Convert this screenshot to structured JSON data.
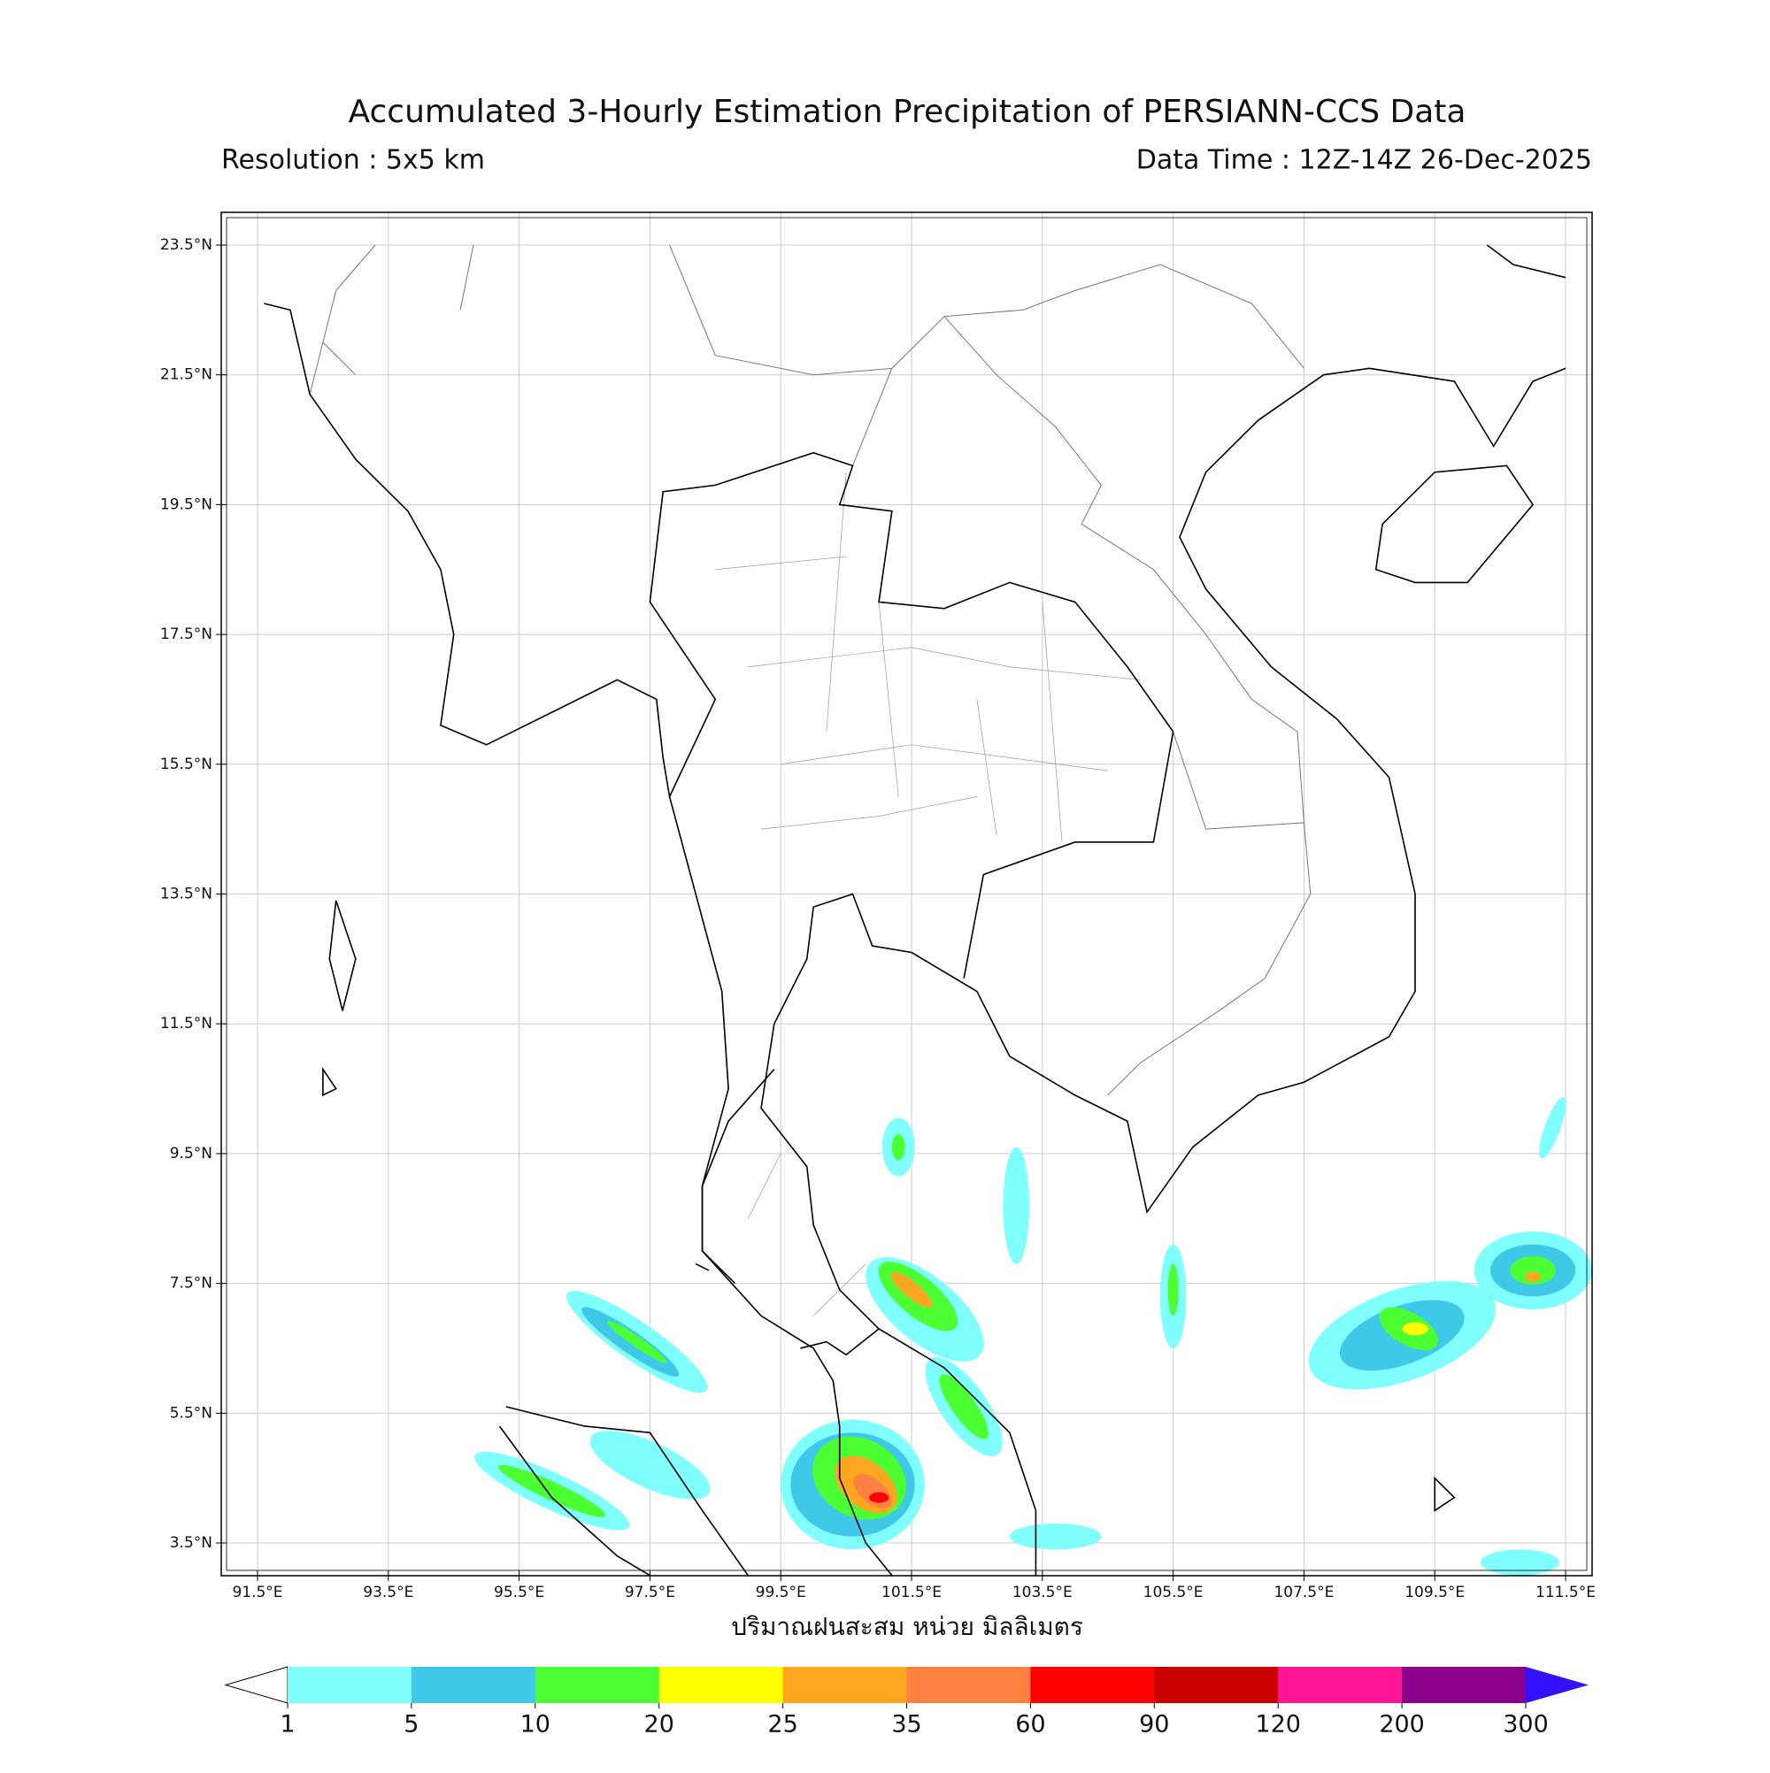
{
  "header": {
    "title": "Accumulated 3-Hourly Estimation Precipitation of PERSIANN-CCS Data",
    "resolution": "Resolution : 5x5 km",
    "data_time": "Data Time : 12Z-14Z 26-Dec-2025"
  },
  "map": {
    "lat_labels": [
      "23.5°N",
      "21.5°N",
      "19.5°N",
      "17.5°N",
      "15.5°N",
      "13.5°N",
      "11.5°N",
      "9.5°N",
      "7.5°N",
      "5.5°N",
      "3.5°N"
    ],
    "lon_labels": [
      "91.5°E",
      "93.5°E",
      "95.5°E",
      "97.5°E",
      "99.5°E",
      "101.5°E",
      "103.5°E",
      "105.5°E",
      "107.5°E",
      "109.5°E",
      "111.5°E"
    ],
    "x_label": "ปริมาณฝนสะสม หน่วย มิลลิเมตร"
  },
  "colorbar": {
    "ticks": [
      1,
      5,
      10,
      20,
      25,
      35,
      60,
      90,
      120,
      200,
      300
    ],
    "colors": [
      "#80ffff",
      "#40c8e8",
      "#4cff33",
      "#ffff00",
      "#ffa620",
      "#ff8040",
      "#ff0000",
      "#cc0000",
      "#ff1493",
      "#8b008b"
    ],
    "under_color": "#ffffff",
    "over_color": "#3311ff"
  }
}
